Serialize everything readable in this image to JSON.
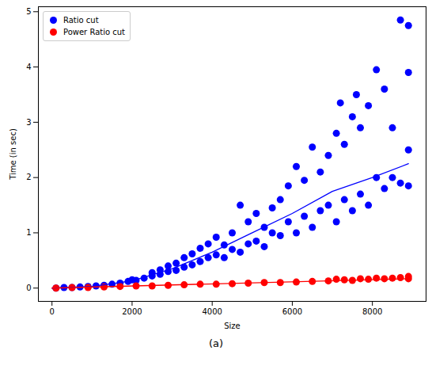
{
  "chart_data": {
    "type": "scatter",
    "caption": "(a)",
    "x_label": "Size",
    "y_label": "Time (in sec)",
    "xlim": [
      -340,
      9340
    ],
    "ylim": [
      -0.24,
      5.09
    ],
    "xticks": [
      0,
      2000,
      4000,
      6000,
      8000
    ],
    "yticks": [
      0,
      1,
      2,
      3,
      4,
      5
    ],
    "legend": "upper left",
    "series": [
      {
        "name": "Ratio cut",
        "color": "#0000ff",
        "marker": "circle",
        "x": [
          100,
          300,
          500,
          700,
          900,
          1100,
          1300,
          1500,
          1700,
          1900,
          2000,
          2100,
          2300,
          2500,
          2500,
          2700,
          2700,
          2900,
          2900,
          3100,
          3100,
          3300,
          3300,
          3500,
          3500,
          3700,
          3700,
          3900,
          3900,
          4100,
          4100,
          4300,
          4300,
          4500,
          4500,
          4700,
          4700,
          4900,
          4900,
          5100,
          5100,
          5300,
          5300,
          5500,
          5500,
          5700,
          5700,
          5900,
          5900,
          6100,
          6100,
          6300,
          6300,
          6500,
          6500,
          6700,
          6700,
          6900,
          6900,
          7100,
          7100,
          7200,
          7300,
          7300,
          7500,
          7500,
          7600,
          7700,
          7700,
          7900,
          7900,
          8100,
          8100,
          8300,
          8300,
          8500,
          8500,
          8700,
          8700,
          8900,
          8900,
          8900,
          8900
        ],
        "values": [
          0.0,
          0.01,
          0.01,
          0.02,
          0.03,
          0.04,
          0.05,
          0.07,
          0.09,
          0.12,
          0.15,
          0.14,
          0.18,
          0.22,
          0.28,
          0.25,
          0.33,
          0.3,
          0.4,
          0.32,
          0.45,
          0.38,
          0.55,
          0.42,
          0.62,
          0.48,
          0.72,
          0.55,
          0.8,
          0.6,
          0.92,
          0.55,
          0.78,
          0.7,
          1.0,
          0.65,
          1.5,
          0.8,
          1.2,
          0.85,
          1.35,
          0.75,
          1.1,
          1.0,
          1.45,
          0.95,
          1.6,
          1.2,
          1.85,
          1.0,
          2.2,
          1.3,
          1.95,
          1.1,
          2.55,
          1.4,
          2.1,
          1.5,
          2.4,
          1.2,
          2.8,
          3.35,
          1.6,
          2.6,
          1.4,
          3.1,
          3.5,
          1.7,
          2.9,
          1.5,
          3.3,
          3.95,
          2.0,
          1.8,
          3.6,
          2.0,
          2.9,
          4.85,
          1.9,
          4.75,
          3.9,
          2.5,
          1.85
        ],
        "trend": {
          "x": [
            0,
            1000,
            2000,
            3000,
            4000,
            5000,
            6000,
            7000,
            8000,
            8900
          ],
          "values": [
            0.0,
            0.03,
            0.13,
            0.35,
            0.65,
            1.0,
            1.35,
            1.75,
            2.0,
            2.25
          ]
        }
      },
      {
        "name": "Power Ratio cut",
        "color": "#ff0000",
        "marker": "circle",
        "x": [
          100,
          500,
          900,
          1300,
          1700,
          2100,
          2500,
          2900,
          3300,
          3700,
          4100,
          4500,
          4900,
          5300,
          5700,
          6100,
          6500,
          6900,
          7100,
          7300,
          7500,
          7700,
          7900,
          8100,
          8300,
          8500,
          8700,
          8900,
          8900
        ],
        "values": [
          0.0,
          0.01,
          0.01,
          0.02,
          0.03,
          0.04,
          0.04,
          0.05,
          0.06,
          0.07,
          0.07,
          0.08,
          0.09,
          0.1,
          0.1,
          0.11,
          0.12,
          0.13,
          0.16,
          0.15,
          0.14,
          0.17,
          0.16,
          0.18,
          0.17,
          0.18,
          0.19,
          0.21,
          0.17
        ],
        "trend": {
          "x": [
            0,
            8900
          ],
          "values": [
            0.0,
            0.17
          ]
        }
      }
    ]
  }
}
